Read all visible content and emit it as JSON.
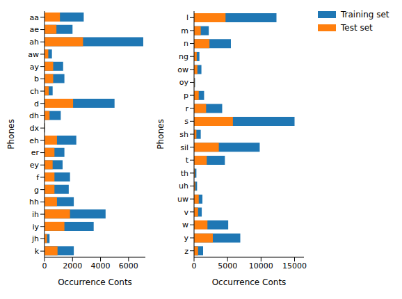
{
  "chart_data": [
    {
      "type": "bar",
      "orientation": "horizontal",
      "ylabel": "Phones",
      "xlabel": "Occurrence Conts",
      "categories": [
        "aa",
        "ae",
        "ah",
        "aw",
        "ay",
        "b",
        "ch",
        "d",
        "dh",
        "dx",
        "eh",
        "er",
        "ey",
        "f",
        "g",
        "hh",
        "ih",
        "iy",
        "jh",
        "k"
      ],
      "series": [
        {
          "name": "Training set",
          "color": "#1f77b4",
          "values": [
            2800,
            2000,
            7050,
            530,
            1330,
            1420,
            580,
            5000,
            1160,
            40,
            2270,
            1420,
            1290,
            1820,
            1730,
            2090,
            4360,
            3510,
            360,
            2090
          ]
        },
        {
          "name": "Test set",
          "color": "#ff7f0e",
          "values": [
            1100,
            850,
            2750,
            270,
            620,
            620,
            300,
            2040,
            360,
            20,
            890,
            710,
            580,
            710,
            710,
            890,
            1820,
            1420,
            180,
            930
          ]
        }
      ],
      "xlim": [
        0,
        7200
      ],
      "xticks": [
        0,
        2000,
        4000,
        6000
      ]
    },
    {
      "type": "bar",
      "orientation": "horizontal",
      "ylabel": "Phones",
      "xlabel": "Occurrence Conts",
      "categories": [
        "l",
        "m",
        "n",
        "ng",
        "ow",
        "oy",
        "p",
        "r",
        "s",
        "sh",
        "sil",
        "t",
        "th",
        "uh",
        "uw",
        "v",
        "w",
        "y",
        "z"
      ],
      "series": [
        {
          "name": "Training set",
          "color": "#1f77b4",
          "values": [
            12300,
            2200,
            5500,
            800,
            1100,
            150,
            1500,
            4200,
            15000,
            1000,
            9800,
            4600,
            350,
            450,
            1250,
            1150,
            5100,
            6900,
            1350
          ]
        },
        {
          "name": "Test set",
          "color": "#ff7f0e",
          "values": [
            4700,
            1000,
            2300,
            400,
            500,
            60,
            700,
            1800,
            5800,
            350,
            3700,
            1900,
            120,
            180,
            700,
            600,
            2000,
            2800,
            600
          ]
        }
      ],
      "xlim": [
        0,
        16400
      ],
      "xticks": [
        0,
        5000,
        10000,
        15000
      ],
      "legend": "upper right"
    }
  ]
}
